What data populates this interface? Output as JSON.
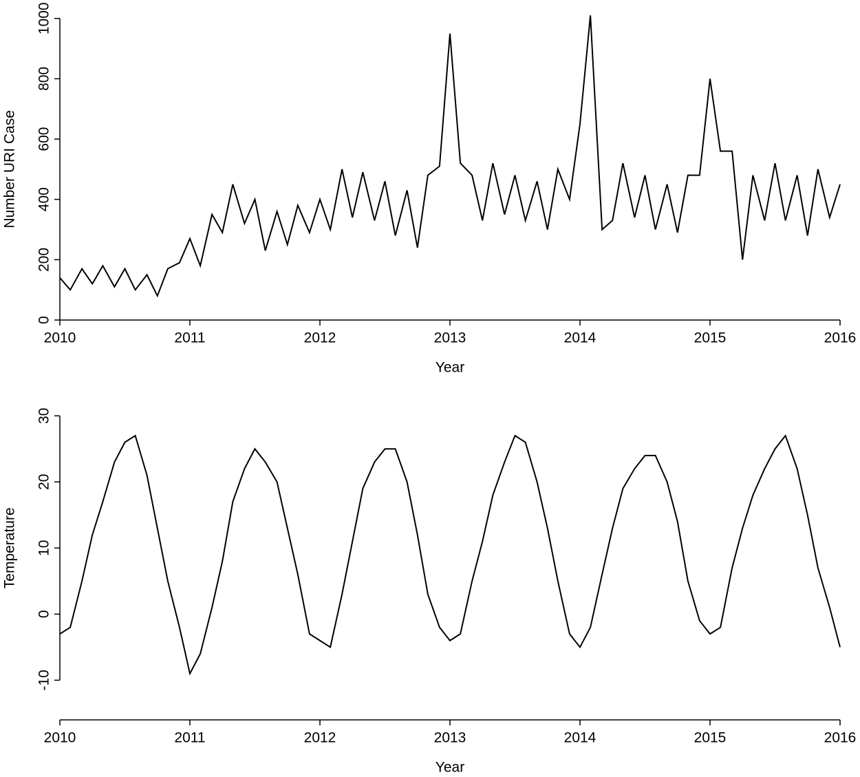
{
  "chart_data": [
    {
      "type": "line",
      "x_label": "Year",
      "y_label": "Number URI Case",
      "x": [
        2010.0,
        2010.08,
        2010.17,
        2010.25,
        2010.33,
        2010.42,
        2010.5,
        2010.58,
        2010.67,
        2010.75,
        2010.83,
        2010.92,
        2011.0,
        2011.08,
        2011.17,
        2011.25,
        2011.33,
        2011.42,
        2011.5,
        2011.58,
        2011.67,
        2011.75,
        2011.83,
        2011.92,
        2012.0,
        2012.08,
        2012.17,
        2012.25,
        2012.33,
        2012.42,
        2012.5,
        2012.58,
        2012.67,
        2012.75,
        2012.83,
        2012.92,
        2013.0,
        2013.08,
        2013.17,
        2013.25,
        2013.33,
        2013.42,
        2013.5,
        2013.58,
        2013.67,
        2013.75,
        2013.83,
        2013.92,
        2014.0,
        2014.08,
        2014.17,
        2014.25,
        2014.33,
        2014.42,
        2014.5,
        2014.58,
        2014.67,
        2014.75,
        2014.83,
        2014.92,
        2015.0,
        2015.08,
        2015.17,
        2015.25,
        2015.33,
        2015.42,
        2015.5,
        2015.58,
        2015.67,
        2015.75,
        2015.83,
        2015.92,
        2016.0
      ],
      "series": [
        {
          "color": "#000000",
          "values": [
            140,
            100,
            170,
            120,
            180,
            110,
            170,
            100,
            150,
            80,
            170,
            190,
            270,
            180,
            350,
            290,
            450,
            320,
            400,
            230,
            360,
            250,
            380,
            290,
            400,
            300,
            500,
            340,
            490,
            330,
            460,
            280,
            430,
            240,
            480,
            510,
            950,
            520,
            480,
            330,
            520,
            350,
            480,
            330,
            460,
            300,
            500,
            400,
            650,
            1010,
            300,
            330,
            520,
            340,
            480,
            300,
            450,
            290,
            480,
            480,
            800,
            560,
            560,
            200,
            480,
            330,
            520,
            330,
            480,
            280,
            500,
            340,
            450
          ]
        }
      ],
      "xlim": [
        2010,
        2016
      ],
      "xticks": [
        2010,
        2011,
        2012,
        2013,
        2014,
        2015,
        2016
      ],
      "ylim": [
        0,
        1020
      ],
      "yticks": [
        0,
        200,
        400,
        600,
        800,
        1000
      ]
    },
    {
      "type": "line",
      "x_label": "Year",
      "y_label": "Temperature",
      "x": [
        2010.0,
        2010.08,
        2010.17,
        2010.25,
        2010.33,
        2010.42,
        2010.5,
        2010.58,
        2010.67,
        2010.75,
        2010.83,
        2010.92,
        2011.0,
        2011.08,
        2011.17,
        2011.25,
        2011.33,
        2011.42,
        2011.5,
        2011.58,
        2011.67,
        2011.75,
        2011.83,
        2011.92,
        2012.0,
        2012.08,
        2012.17,
        2012.25,
        2012.33,
        2012.42,
        2012.5,
        2012.58,
        2012.67,
        2012.75,
        2012.83,
        2012.92,
        2013.0,
        2013.08,
        2013.17,
        2013.25,
        2013.33,
        2013.42,
        2013.5,
        2013.58,
        2013.67,
        2013.75,
        2013.83,
        2013.92,
        2014.0,
        2014.08,
        2014.17,
        2014.25,
        2014.33,
        2014.42,
        2014.5,
        2014.58,
        2014.67,
        2014.75,
        2014.83,
        2014.92,
        2015.0,
        2015.08,
        2015.17,
        2015.25,
        2015.33,
        2015.42,
        2015.5,
        2015.58,
        2015.67,
        2015.75,
        2015.83,
        2015.92,
        2016.0
      ],
      "series": [
        {
          "color": "#000000",
          "values": [
            -3,
            -2,
            5,
            12,
            17,
            23,
            26,
            27,
            21,
            13,
            5,
            -2,
            -9,
            -6,
            1,
            8,
            17,
            22,
            25,
            23,
            20,
            13,
            6,
            -3,
            -4,
            -5,
            3,
            11,
            19,
            23,
            25,
            25,
            20,
            12,
            3,
            -2,
            -4,
            -3,
            5,
            11,
            18,
            23,
            27,
            26,
            20,
            13,
            5,
            -3,
            -5,
            -2,
            6,
            13,
            19,
            22,
            24,
            24,
            20,
            14,
            5,
            -1,
            -3,
            -2,
            7,
            13,
            18,
            22,
            25,
            27,
            22,
            15,
            7,
            1,
            -5
          ]
        }
      ],
      "xlim": [
        2010,
        2016
      ],
      "xticks": [
        2010,
        2011,
        2012,
        2013,
        2014,
        2015,
        2016
      ],
      "ylim": [
        -16,
        32
      ],
      "yticks": [
        -10,
        0,
        10,
        20,
        30
      ]
    }
  ]
}
